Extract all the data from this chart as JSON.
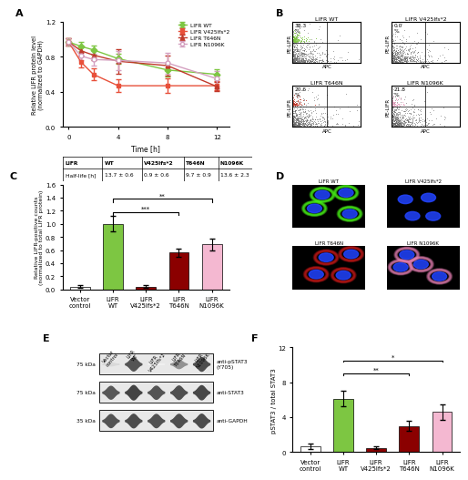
{
  "panel_A": {
    "time_points": [
      0,
      1,
      2,
      4,
      8,
      12
    ],
    "wt_mean": [
      0.97,
      0.92,
      0.88,
      0.78,
      0.65,
      0.6
    ],
    "wt_err": [
      0.04,
      0.05,
      0.05,
      0.06,
      0.07,
      0.06
    ],
    "v425_mean": [
      0.97,
      0.74,
      0.6,
      0.47,
      0.47,
      0.47
    ],
    "v425_err": [
      0.04,
      0.06,
      0.07,
      0.07,
      0.08,
      0.05
    ],
    "t646_mean": [
      0.97,
      0.87,
      0.82,
      0.75,
      0.7,
      0.46
    ],
    "t646_err": [
      0.04,
      0.05,
      0.06,
      0.14,
      0.11,
      0.05
    ],
    "n1096_mean": [
      0.97,
      0.81,
      0.77,
      0.76,
      0.73,
      0.55
    ],
    "n1096_err": [
      0.04,
      0.05,
      0.07,
      0.11,
      0.12,
      0.09
    ],
    "wt_color": "#7dc642",
    "v425_color": "#e8503a",
    "t646_color": "#c0392b",
    "n1096_color": "#d4a0c0",
    "ylabel": "Relative LIFR protein level\n(normalized to GAPDH)",
    "xlabel": "Time [h]",
    "ylim": [
      0,
      1.2
    ],
    "xlim": [
      -0.5,
      13
    ],
    "table_headers": [
      "LIFR",
      "WT",
      "V425lfs*2",
      "T646N",
      "N1096K"
    ],
    "table_halflife": [
      "Half-life [h]",
      "13.7 ± 0.6",
      "0.9 ± 0.6",
      "9.7 ± 0.9",
      "13.6 ± 2.3"
    ]
  },
  "panel_B": {
    "titles": [
      "LIFR WT",
      "LIFR V425lfs*2",
      "LIFR T646N",
      "LIFR N1096K"
    ],
    "percentages": [
      "38.3",
      "0.0",
      "20.6",
      "21.8"
    ],
    "colors": [
      "#7dc642",
      "#aaaaaa",
      "#c0392b",
      "#e8a0c0"
    ]
  },
  "panel_C": {
    "categories": [
      "Vector\ncontrol",
      "LIFR\nWT",
      "LIFR\nV425lfs*2",
      "LIFR\nT646N",
      "LIFR\nN1096K"
    ],
    "values": [
      0.04,
      1.0,
      0.04,
      0.56,
      0.69
    ],
    "errors": [
      0.02,
      0.12,
      0.02,
      0.06,
      0.09
    ],
    "colors": [
      "#ffffff",
      "#7dc642",
      "#8b0000",
      "#8b0000",
      "#f4b8d1"
    ],
    "ylabel": "Relative LIFR-positive counts\n(normalized to total LIFR protein)",
    "ylim": [
      0,
      1.6
    ],
    "sig_lines": [
      {
        "x1": 1,
        "x2": 3,
        "y": 1.18,
        "text": "***"
      },
      {
        "x1": 1,
        "x2": 4,
        "y": 1.38,
        "text": "**"
      }
    ]
  },
  "panel_F": {
    "categories": [
      "Vector\ncontrol",
      "LIFR\nWT",
      "LIFR\nV425lfs*2",
      "LIFR\nT646N",
      "LIFR\nN1096K"
    ],
    "values": [
      0.7,
      6.1,
      0.5,
      3.0,
      4.6
    ],
    "errors": [
      0.3,
      0.9,
      0.2,
      0.6,
      0.9
    ],
    "colors": [
      "#ffffff",
      "#7dc642",
      "#8b0000",
      "#8b0000",
      "#f4b8d1"
    ],
    "ylabel": "pSTAT3 / total STAT3",
    "ylim": [
      0,
      12
    ],
    "yticks": [
      0,
      4,
      8,
      12
    ],
    "sig_lines": [
      {
        "x1": 1,
        "x2": 3,
        "y": 9.0,
        "text": "**"
      },
      {
        "x1": 1,
        "x2": 4,
        "y": 10.5,
        "text": "*"
      }
    ]
  },
  "panel_E": {
    "lanes": [
      "Vector\ncontrol",
      "LIFR\nWT",
      "LIFR\nV425lfs*2",
      "LIFR\nT646N",
      "LIFR\nN1096K"
    ],
    "bands": [
      {
        "label": "anti-pSTAT3\n(Y705)",
        "kda": "75 kDa",
        "intensities": [
          0.18,
          0.82,
          0.07,
          0.52,
          0.85
        ]
      },
      {
        "label": "anti-STAT3",
        "kda": "75 kDa",
        "intensities": [
          0.8,
          0.9,
          0.82,
          0.84,
          0.88
        ]
      },
      {
        "label": "anti-GAPDH",
        "kda": "35 kDa",
        "intensities": [
          0.82,
          0.85,
          0.83,
          0.84,
          0.86
        ]
      }
    ]
  }
}
